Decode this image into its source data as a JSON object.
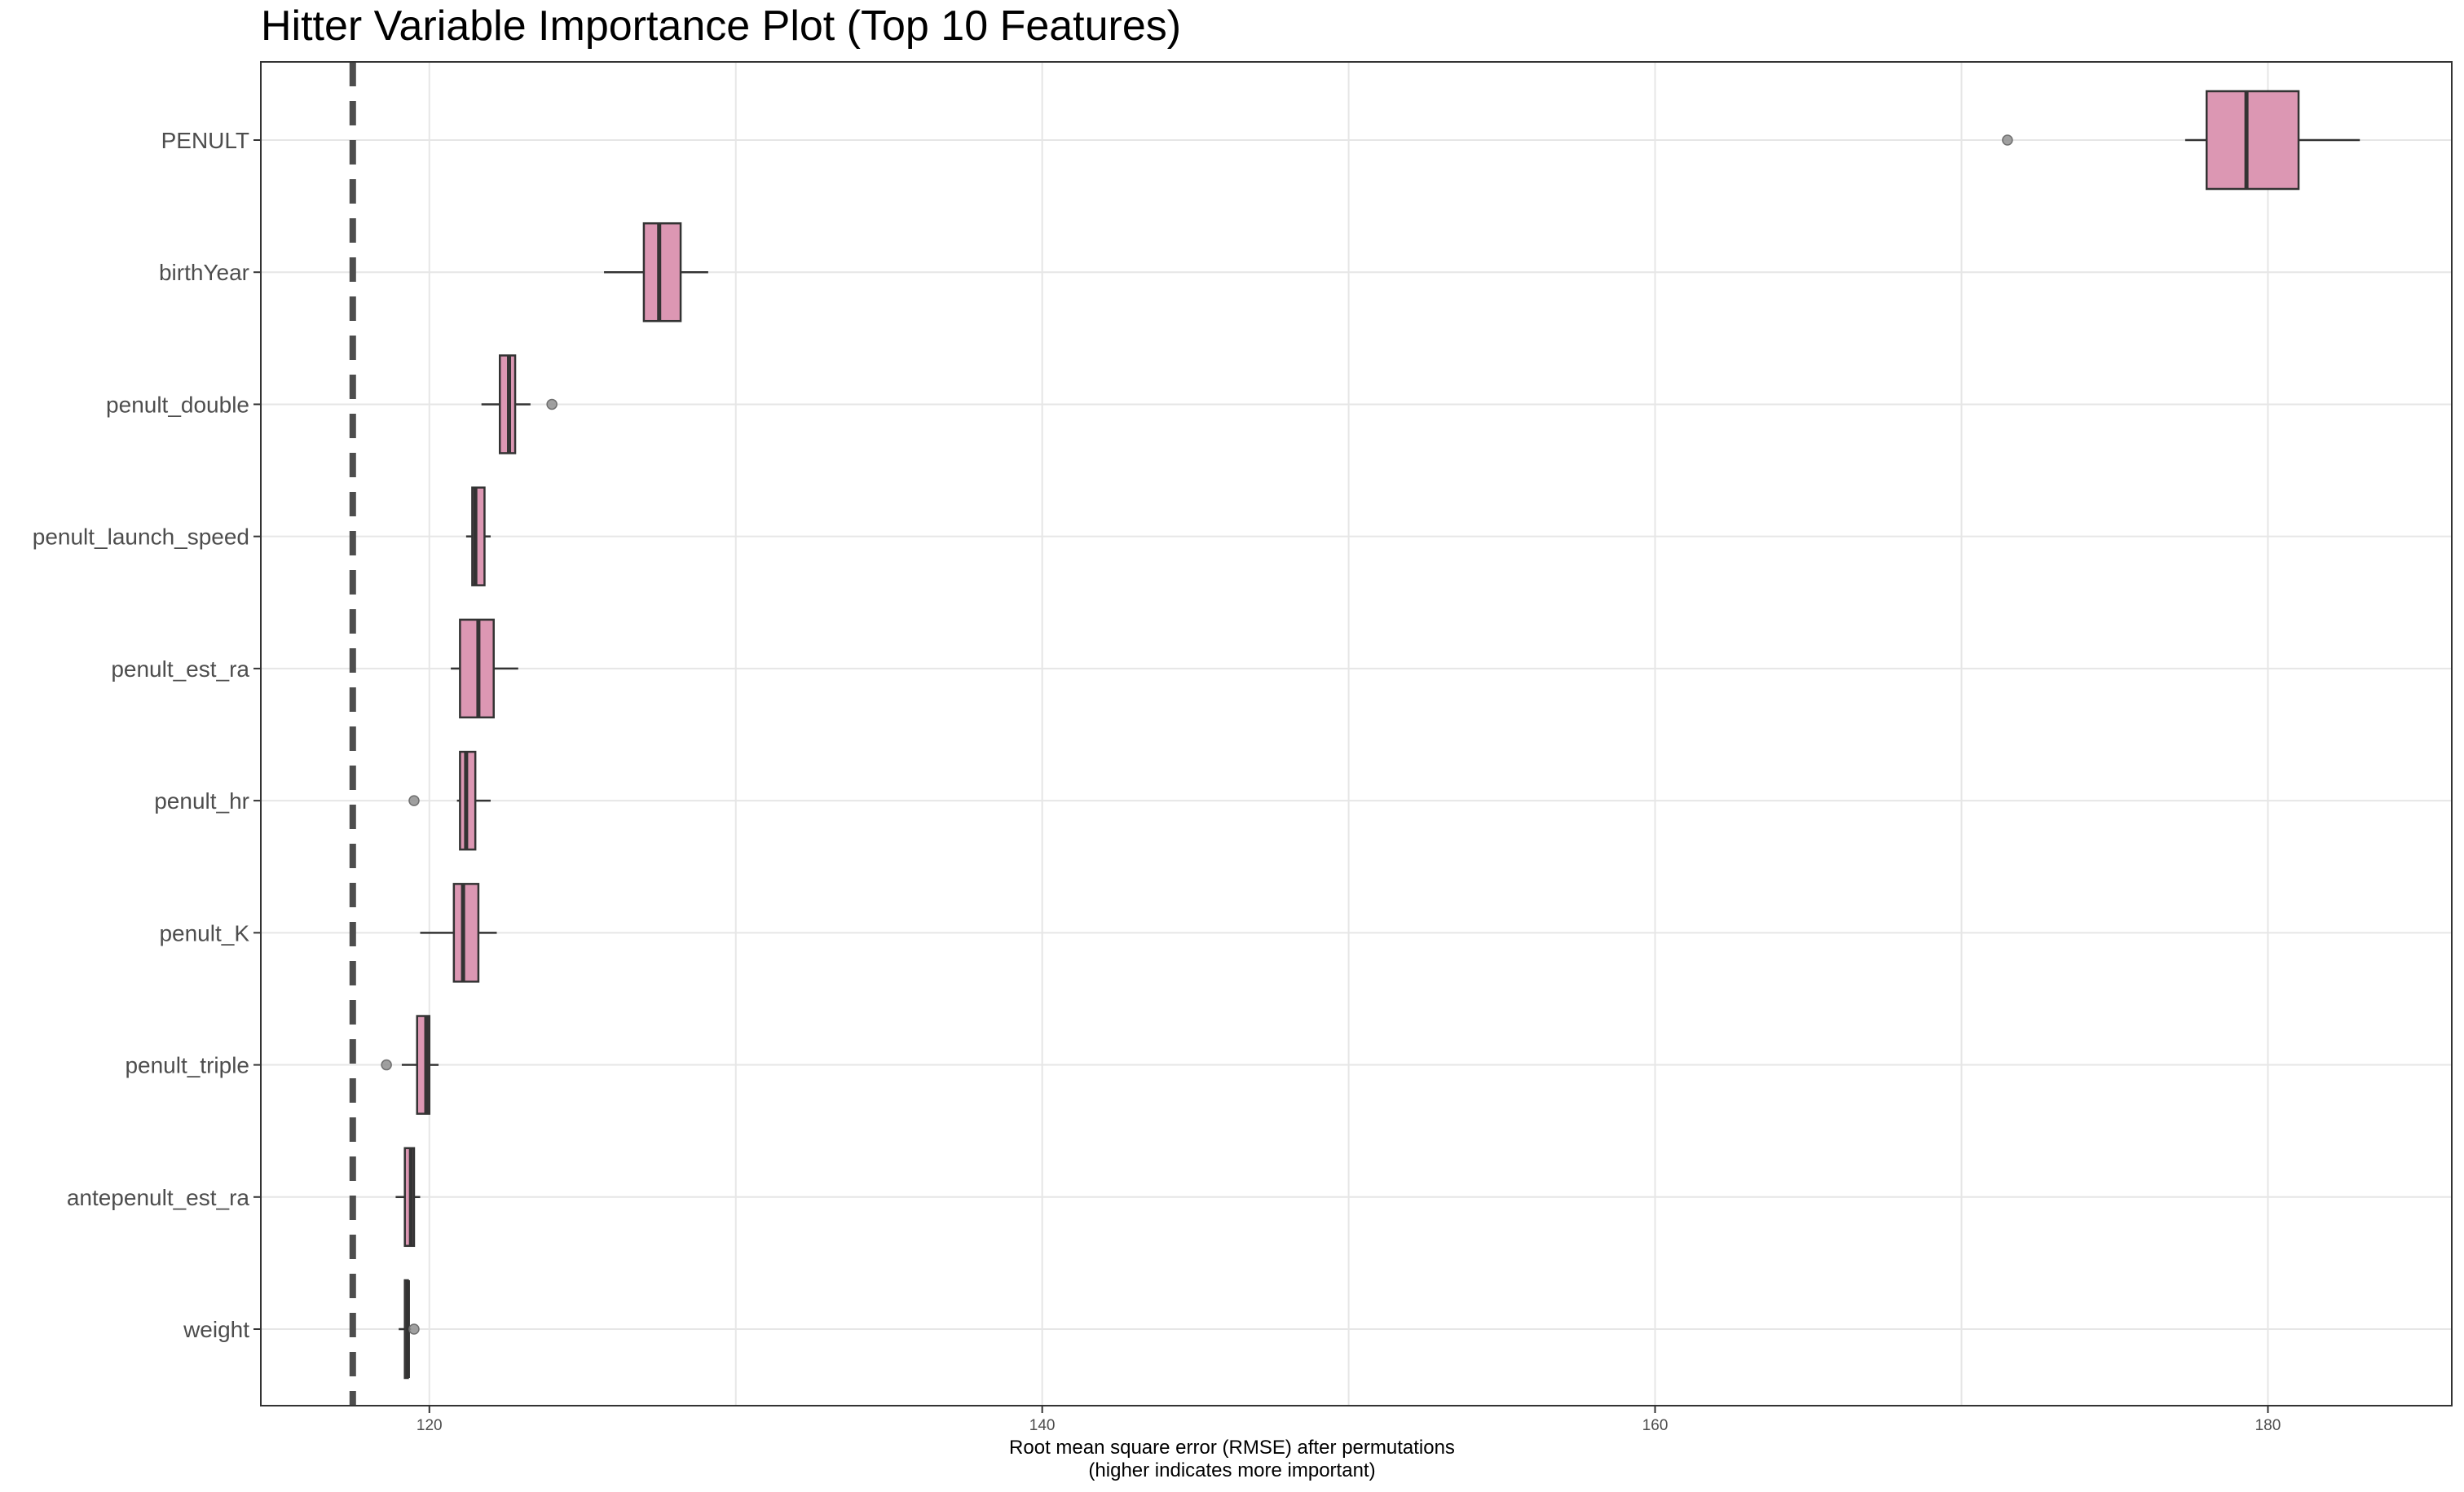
{
  "chart_data": {
    "type": "boxplot",
    "title": "Hitter Variable Importance Plot (Top 10 Features)",
    "xlabel_line1": "Root mean square error (RMSE) after permutations",
    "xlabel_line2": "(higher indicates more important)",
    "ylabel": "",
    "xlim": [
      114.5,
      186.0
    ],
    "xticks": [
      120,
      140,
      160,
      180
    ],
    "grid": true,
    "baseline": 117.5,
    "box_fill": "#dc97b3",
    "box_stroke": "#333333",
    "outlier_color": "#8f8f8f",
    "baseline_color": "#4d4d4d",
    "grid_color": "#e6e6e6",
    "features": [
      {
        "name": "PENULT",
        "whisker_low": 177.3,
        "q1": 178.0,
        "median": 179.3,
        "q3": 181.0,
        "whisker_high": 183.0,
        "outliers": [
          171.5
        ]
      },
      {
        "name": "birthYear",
        "whisker_low": 125.7,
        "q1": 127.0,
        "median": 127.5,
        "q3": 128.2,
        "whisker_high": 129.1,
        "outliers": []
      },
      {
        "name": "penult_double",
        "whisker_low": 121.7,
        "q1": 122.3,
        "median": 122.6,
        "q3": 122.8,
        "whisker_high": 123.3,
        "outliers": [
          124.0
        ]
      },
      {
        "name": "penult_launch_speed",
        "whisker_low": 121.2,
        "q1": 121.4,
        "median": 121.5,
        "q3": 121.8,
        "whisker_high": 122.0,
        "outliers": []
      },
      {
        "name": "penult_est_ra",
        "whisker_low": 120.7,
        "q1": 121.0,
        "median": 121.6,
        "q3": 122.1,
        "whisker_high": 122.9,
        "outliers": []
      },
      {
        "name": "penult_hr",
        "whisker_low": 120.9,
        "q1": 121.0,
        "median": 121.2,
        "q3": 121.5,
        "whisker_high": 122.0,
        "outliers": [
          119.5
        ]
      },
      {
        "name": "penult_K",
        "whisker_low": 119.7,
        "q1": 120.8,
        "median": 121.1,
        "q3": 121.6,
        "whisker_high": 122.2,
        "outliers": []
      },
      {
        "name": "penult_triple",
        "whisker_low": 119.1,
        "q1": 119.6,
        "median": 119.9,
        "q3": 120.0,
        "whisker_high": 120.3,
        "outliers": [
          118.6
        ]
      },
      {
        "name": "antepenult_est_ra",
        "whisker_low": 118.9,
        "q1": 119.2,
        "median": 119.4,
        "q3": 119.5,
        "whisker_high": 119.7,
        "outliers": []
      },
      {
        "name": "weight",
        "whisker_low": 119.0,
        "q1": 119.2,
        "median": 119.3,
        "q3": 119.3,
        "whisker_high": 119.4,
        "outliers": [
          119.5
        ]
      }
    ]
  }
}
